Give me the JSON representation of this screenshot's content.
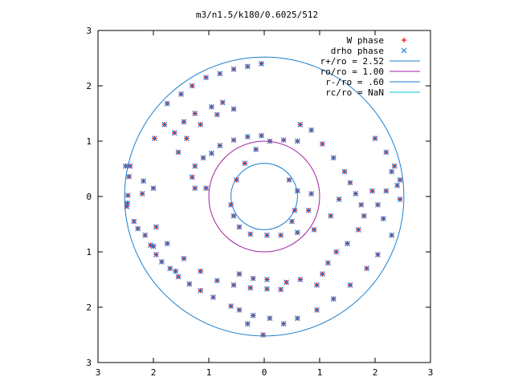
{
  "chart_data": {
    "type": "scatter",
    "title": "m3/n1.5/k180/0.6025/512",
    "xlim": [
      -3,
      3
    ],
    "ylim": [
      -3,
      3
    ],
    "x_tick_values": [
      -3,
      -2,
      -1,
      0,
      1,
      2,
      3
    ],
    "y_tick_values": [
      -3,
      -2,
      -1,
      0,
      1,
      2,
      3
    ],
    "x_tick_labels": [
      "3",
      "2",
      "1",
      "0",
      "1",
      "2",
      "3"
    ],
    "y_tick_labels": [
      "3",
      "2",
      "1",
      "0",
      "1",
      "2",
      "3"
    ],
    "grid": false,
    "legend_position": "top-right",
    "colors": {
      "w_phase": "#ff0000",
      "drho_phase": "#1a7fe0",
      "r_plus": "#1a7fd0",
      "r_o": "#a020a0",
      "r_minus": "#1a7fd0",
      "r_c": "#00c8c8"
    },
    "series": [
      {
        "name": "W phase",
        "kind": "points",
        "marker": "plus",
        "points": [
          [
            -2.48,
            -0.18
          ],
          [
            -2.47,
            -0.12
          ],
          [
            -2.46,
            0.02
          ],
          [
            -2.44,
            0.36
          ],
          [
            -2.42,
            0.55
          ],
          [
            -2.35,
            -0.45
          ],
          [
            -2.28,
            -0.58
          ],
          [
            -2.2,
            0.05
          ],
          [
            -2.18,
            0.28
          ],
          [
            -2.15,
            -0.7
          ],
          [
            -2.05,
            -0.88
          ],
          [
            -2.0,
            0.15
          ],
          [
            -1.98,
            1.05
          ],
          [
            -1.95,
            -1.05
          ],
          [
            -1.85,
            -1.18
          ],
          [
            -1.8,
            1.3
          ],
          [
            -1.75,
            1.68
          ],
          [
            -1.7,
            -1.3
          ],
          [
            -1.62,
            1.15
          ],
          [
            -1.55,
            -1.45
          ],
          [
            -1.5,
            1.85
          ],
          [
            -1.45,
            1.35
          ],
          [
            -1.35,
            -1.58
          ],
          [
            -1.3,
            2.0
          ],
          [
            -1.25,
            1.5
          ],
          [
            -1.15,
            -1.7
          ],
          [
            -1.05,
            2.15
          ],
          [
            -0.95,
            1.62
          ],
          [
            -0.92,
            -1.82
          ],
          [
            -0.8,
            2.22
          ],
          [
            -0.75,
            1.7
          ],
          [
            -0.6,
            -1.98
          ],
          [
            -0.55,
            2.3
          ],
          [
            -0.45,
            -2.05
          ],
          [
            -0.3,
            2.35
          ],
          [
            -0.2,
            -2.15
          ],
          [
            -0.05,
            2.4
          ],
          [
            0.1,
            -2.2
          ],
          [
            -2.5,
            0.55
          ],
          [
            -2.0,
            -0.9
          ],
          [
            -1.6,
            -1.35
          ],
          [
            -0.3,
            -2.3
          ],
          [
            -0.02,
            -2.5
          ],
          [
            -1.25,
            0.15
          ],
          [
            -1.3,
            0.35
          ],
          [
            -1.25,
            0.55
          ],
          [
            -1.1,
            0.7
          ],
          [
            -0.95,
            0.78
          ],
          [
            -1.05,
            0.15
          ],
          [
            -0.8,
            0.92
          ],
          [
            -0.55,
            1.02
          ],
          [
            -0.3,
            1.08
          ],
          [
            -0.05,
            1.1
          ],
          [
            -1.95,
            -0.55
          ],
          [
            -1.75,
            -0.85
          ],
          [
            -1.45,
            -1.12
          ],
          [
            -1.15,
            -1.35
          ],
          [
            -0.85,
            -1.52
          ],
          [
            -0.55,
            -1.6
          ],
          [
            -0.25,
            -1.65
          ],
          [
            0.05,
            -1.67
          ],
          [
            0.3,
            -1.68
          ],
          [
            -0.45,
            -1.4
          ],
          [
            -0.2,
            -1.48
          ],
          [
            0.05,
            -1.5
          ],
          [
            0.4,
            -1.55
          ],
          [
            0.65,
            -1.5
          ],
          [
            -1.55,
            0.8
          ],
          [
            -1.4,
            1.05
          ],
          [
            -1.15,
            1.3
          ],
          [
            -0.85,
            1.48
          ],
          [
            -0.55,
            1.58
          ],
          [
            0.65,
            1.3
          ],
          [
            0.85,
            1.2
          ],
          [
            1.05,
            0.95
          ],
          [
            1.25,
            0.7
          ],
          [
            1.45,
            0.45
          ],
          [
            1.55,
            0.25
          ],
          [
            1.65,
            0.05
          ],
          [
            1.75,
            -0.15
          ],
          [
            1.8,
            -0.35
          ],
          [
            1.7,
            -0.6
          ],
          [
            1.5,
            -0.85
          ],
          [
            1.3,
            -1.0
          ],
          [
            1.15,
            -1.2
          ],
          [
            1.05,
            -1.4
          ],
          [
            0.95,
            -1.6
          ],
          [
            1.2,
            -0.35
          ],
          [
            1.35,
            -0.05
          ],
          [
            0.9,
            -0.6
          ],
          [
            0.6,
            -0.65
          ],
          [
            0.3,
            -0.7
          ],
          [
            0.05,
            -0.7
          ],
          [
            -0.25,
            -0.68
          ],
          [
            -0.45,
            -0.55
          ],
          [
            -0.55,
            -0.35
          ],
          [
            -0.6,
            -0.15
          ],
          [
            -0.5,
            0.3
          ],
          [
            -0.35,
            0.6
          ],
          [
            -0.15,
            0.85
          ],
          [
            0.1,
            1.0
          ],
          [
            0.35,
            1.02
          ],
          [
            0.6,
            1.0
          ],
          [
            0.45,
            0.3
          ],
          [
            0.6,
            0.1
          ],
          [
            0.55,
            -0.25
          ],
          [
            0.5,
            -0.45
          ],
          [
            0.8,
            -0.25
          ],
          [
            0.85,
            0.05
          ],
          [
            1.95,
            0.1
          ],
          [
            2.05,
            -0.15
          ],
          [
            2.15,
            -0.4
          ],
          [
            2.2,
            0.1
          ],
          [
            2.3,
            0.45
          ],
          [
            2.4,
            0.2
          ],
          [
            2.45,
            -0.05
          ],
          [
            2.3,
            -0.7
          ],
          [
            2.05,
            -1.05
          ],
          [
            1.85,
            -1.3
          ],
          [
            1.55,
            -1.6
          ],
          [
            1.25,
            -1.85
          ],
          [
            0.95,
            -2.05
          ],
          [
            0.6,
            -2.2
          ],
          [
            0.35,
            -2.3
          ],
          [
            2.0,
            1.05
          ],
          [
            2.2,
            0.8
          ],
          [
            2.35,
            0.55
          ],
          [
            2.45,
            0.3
          ]
        ]
      },
      {
        "name": "drho phase",
        "kind": "points",
        "marker": "x",
        "points": [
          [
            -2.48,
            -0.18
          ],
          [
            -2.47,
            -0.12
          ],
          [
            -2.46,
            0.02
          ],
          [
            -2.44,
            0.36
          ],
          [
            -2.42,
            0.55
          ],
          [
            -2.35,
            -0.45
          ],
          [
            -2.28,
            -0.58
          ],
          [
            -2.2,
            0.05
          ],
          [
            -2.18,
            0.28
          ],
          [
            -2.15,
            -0.7
          ],
          [
            -2.05,
            -0.88
          ],
          [
            -2.0,
            0.15
          ],
          [
            -1.98,
            1.05
          ],
          [
            -1.95,
            -1.05
          ],
          [
            -1.85,
            -1.18
          ],
          [
            -1.8,
            1.3
          ],
          [
            -1.75,
            1.68
          ],
          [
            -1.7,
            -1.3
          ],
          [
            -1.62,
            1.15
          ],
          [
            -1.55,
            -1.45
          ],
          [
            -1.5,
            1.85
          ],
          [
            -1.45,
            1.35
          ],
          [
            -1.35,
            -1.58
          ],
          [
            -1.3,
            2.0
          ],
          [
            -1.25,
            1.5
          ],
          [
            -1.15,
            -1.7
          ],
          [
            -1.05,
            2.15
          ],
          [
            -0.95,
            1.62
          ],
          [
            -0.92,
            -1.82
          ],
          [
            -0.8,
            2.22
          ],
          [
            -0.75,
            1.7
          ],
          [
            -0.6,
            -1.98
          ],
          [
            -0.55,
            2.3
          ],
          [
            -0.45,
            -2.05
          ],
          [
            -0.3,
            2.35
          ],
          [
            -0.2,
            -2.15
          ],
          [
            -0.05,
            2.4
          ],
          [
            0.1,
            -2.2
          ],
          [
            -2.5,
            0.55
          ],
          [
            -2.0,
            -0.9
          ],
          [
            -1.6,
            -1.35
          ],
          [
            -0.3,
            -2.3
          ],
          [
            -0.02,
            -2.5
          ],
          [
            -1.25,
            0.15
          ],
          [
            -1.3,
            0.35
          ],
          [
            -1.25,
            0.55
          ],
          [
            -1.1,
            0.7
          ],
          [
            -0.95,
            0.78
          ],
          [
            -1.05,
            0.15
          ],
          [
            -0.8,
            0.92
          ],
          [
            -0.55,
            1.02
          ],
          [
            -0.3,
            1.08
          ],
          [
            -0.05,
            1.1
          ],
          [
            -1.95,
            -0.55
          ],
          [
            -1.75,
            -0.85
          ],
          [
            -1.45,
            -1.12
          ],
          [
            -1.15,
            -1.35
          ],
          [
            -0.85,
            -1.52
          ],
          [
            -0.55,
            -1.6
          ],
          [
            -0.25,
            -1.65
          ],
          [
            0.05,
            -1.67
          ],
          [
            0.3,
            -1.68
          ],
          [
            -0.45,
            -1.4
          ],
          [
            -0.2,
            -1.48
          ],
          [
            0.05,
            -1.5
          ],
          [
            0.4,
            -1.55
          ],
          [
            0.65,
            -1.5
          ],
          [
            -1.55,
            0.8
          ],
          [
            -1.4,
            1.05
          ],
          [
            -1.15,
            1.3
          ],
          [
            -0.85,
            1.48
          ],
          [
            -0.55,
            1.58
          ],
          [
            0.65,
            1.3
          ],
          [
            0.85,
            1.2
          ],
          [
            1.05,
            0.95
          ],
          [
            1.25,
            0.7
          ],
          [
            1.45,
            0.45
          ],
          [
            1.55,
            0.25
          ],
          [
            1.65,
            0.05
          ],
          [
            1.75,
            -0.15
          ],
          [
            1.8,
            -0.35
          ],
          [
            1.7,
            -0.6
          ],
          [
            1.5,
            -0.85
          ],
          [
            1.3,
            -1.0
          ],
          [
            1.15,
            -1.2
          ],
          [
            1.05,
            -1.4
          ],
          [
            0.95,
            -1.6
          ],
          [
            1.2,
            -0.35
          ],
          [
            1.35,
            -0.05
          ],
          [
            0.9,
            -0.6
          ],
          [
            0.6,
            -0.65
          ],
          [
            0.3,
            -0.7
          ],
          [
            0.05,
            -0.7
          ],
          [
            -0.25,
            -0.68
          ],
          [
            -0.45,
            -0.55
          ],
          [
            -0.55,
            -0.35
          ],
          [
            -0.6,
            -0.15
          ],
          [
            -0.5,
            0.3
          ],
          [
            -0.35,
            0.6
          ],
          [
            -0.15,
            0.85
          ],
          [
            0.1,
            1.0
          ],
          [
            0.35,
            1.02
          ],
          [
            0.6,
            1.0
          ],
          [
            0.45,
            0.3
          ],
          [
            0.6,
            0.1
          ],
          [
            0.55,
            -0.25
          ],
          [
            0.5,
            -0.45
          ],
          [
            0.8,
            -0.25
          ],
          [
            0.85,
            0.05
          ],
          [
            1.95,
            0.1
          ],
          [
            2.05,
            -0.15
          ],
          [
            2.15,
            -0.4
          ],
          [
            2.2,
            0.1
          ],
          [
            2.3,
            0.45
          ],
          [
            2.4,
            0.2
          ],
          [
            2.45,
            -0.05
          ],
          [
            2.3,
            -0.7
          ],
          [
            2.05,
            -1.05
          ],
          [
            1.85,
            -1.3
          ],
          [
            1.55,
            -1.6
          ],
          [
            1.25,
            -1.85
          ],
          [
            0.95,
            -2.05
          ],
          [
            0.6,
            -2.2
          ],
          [
            0.35,
            -2.3
          ],
          [
            2.0,
            1.05
          ],
          [
            2.2,
            0.8
          ],
          [
            2.35,
            0.55
          ],
          [
            2.45,
            0.3
          ]
        ]
      },
      {
        "name": "r+/ro = 2.52",
        "kind": "circle",
        "radius": 2.52
      },
      {
        "name": "ro/ro = 1.00",
        "kind": "circle",
        "radius": 1.0
      },
      {
        "name": "r-/ro = .60",
        "kind": "circle",
        "radius": 0.6
      },
      {
        "name": "rc/ro = NaN",
        "kind": "circle",
        "radius": null
      }
    ]
  }
}
